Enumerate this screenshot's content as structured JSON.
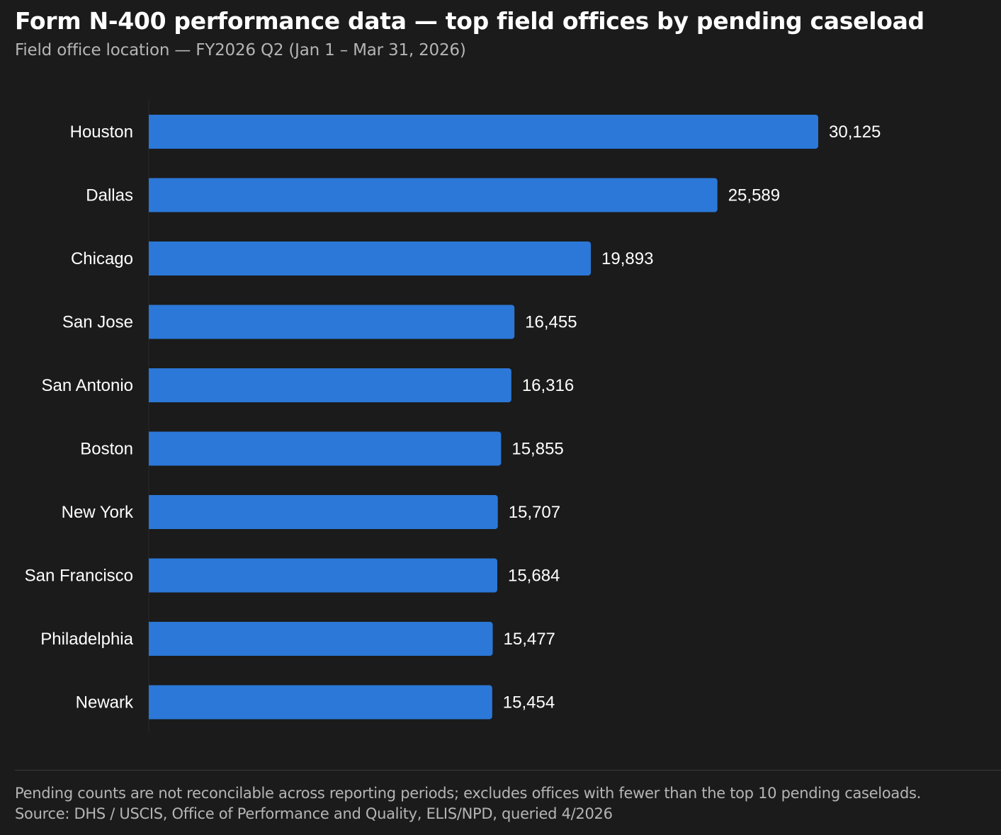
{
  "title": "Form N-400 performance data — top field offices by pending caseload",
  "subtitle": "Field office location — FY2026 Q2 (Jan 1 – Mar 31, 2026)",
  "footnote": {
    "note": "Pending counts are not reconcilable across reporting periods; excludes offices with fewer than the top 10 pending caseloads.",
    "source": "Source: DHS / USCIS, Office of Performance and Quality, ELIS/NPD, queried 4/2026"
  },
  "colors": {
    "background": "#1b1b1b",
    "bar": "#2b78d8",
    "text": "#ffffff",
    "muted": "#b5b5b5"
  },
  "chart_data": {
    "type": "bar",
    "orientation": "horizontal",
    "categories": [
      "Houston",
      "Dallas",
      "Chicago",
      "San Jose",
      "San Antonio",
      "Boston",
      "New York",
      "San Francisco",
      "Philadelphia",
      "Newark"
    ],
    "values": [
      30125,
      25589,
      19893,
      16455,
      16316,
      15855,
      15707,
      15684,
      15477,
      15454
    ],
    "value_labels": [
      "30,125",
      "25,589",
      "19,893",
      "16,455",
      "16,316",
      "15,855",
      "15,707",
      "15,684",
      "15,477",
      "15,454"
    ],
    "xlim": [
      0,
      30125
    ],
    "grid": false,
    "legend": "none"
  }
}
